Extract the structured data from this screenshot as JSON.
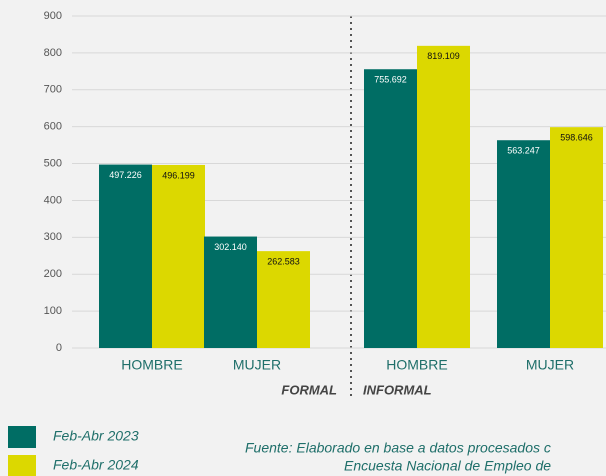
{
  "chart_data": {
    "type": "bar",
    "categories": [
      "HOMBRE",
      "MUJER",
      "HOMBRE",
      "MUJER"
    ],
    "groups": [
      "FORMAL",
      "INFORMAL"
    ],
    "series": [
      {
        "name": "Feb-Abr 2023",
        "color": "#006d64",
        "values": [
          497.226,
          302.14,
          755.692,
          563.247
        ],
        "value_labels": [
          "497.226",
          "302.140",
          "755.692",
          "563.247"
        ]
      },
      {
        "name": "Feb-Abr 2024",
        "color": "#dcd800",
        "values": [
          496.199,
          262.583,
          819.109,
          598.646
        ],
        "value_labels": [
          "496.199",
          "262.583",
          "819.109",
          "598.646"
        ]
      }
    ],
    "ylim": [
      0,
      900
    ],
    "yticks": [
      0,
      100,
      200,
      300,
      400,
      500,
      600,
      700,
      800,
      900
    ],
    "grid": true,
    "source": [
      "Fuente: Elaborado en base a datos procesados c",
      "Encuesta Nacional de Empleo de"
    ]
  }
}
